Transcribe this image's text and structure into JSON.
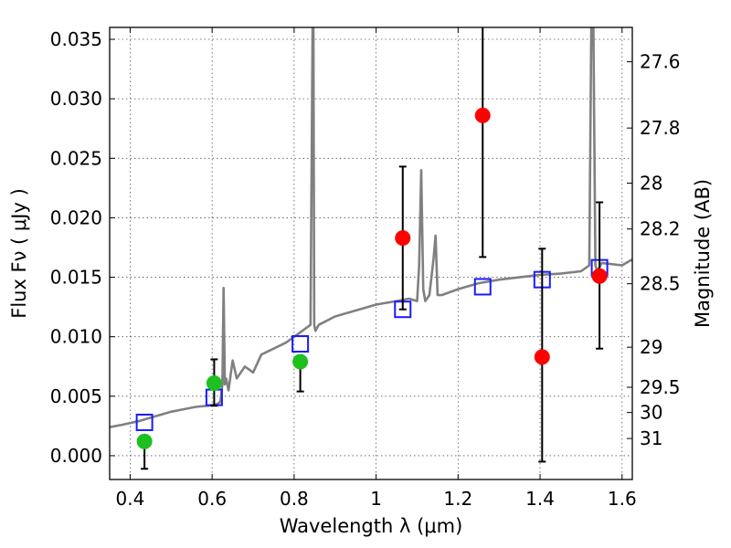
{
  "chart_data": {
    "type": "scatter",
    "title": "",
    "xlabel": "Wavelength  λ (μm)",
    "ylabel": "Flux  Fν  ( μJy )",
    "y2label": "Magnitude (AB)",
    "xlim": [
      0.35,
      1.625
    ],
    "ylim": [
      -0.002,
      0.036
    ],
    "grid": true,
    "legend": "none",
    "x_ticks": [
      {
        "v": 0.4,
        "label": "0.4"
      },
      {
        "v": 0.6,
        "label": "0.6"
      },
      {
        "v": 0.8,
        "label": "0.8"
      },
      {
        "v": 1.0,
        "label": "1"
      },
      {
        "v": 1.2,
        "label": "1.2"
      },
      {
        "v": 1.4,
        "label": "1.4"
      },
      {
        "v": 1.6,
        "label": "1.6"
      }
    ],
    "y_ticks": [
      {
        "v": 0.0,
        "label": "0.000"
      },
      {
        "v": 0.005,
        "label": "0.005"
      },
      {
        "v": 0.01,
        "label": "0.010"
      },
      {
        "v": 0.015,
        "label": "0.015"
      },
      {
        "v": 0.02,
        "label": "0.020"
      },
      {
        "v": 0.025,
        "label": "0.025"
      },
      {
        "v": 0.03,
        "label": "0.030"
      },
      {
        "v": 0.035,
        "label": "0.035"
      }
    ],
    "mag_ticks": [
      {
        "mag": 27.6,
        "label": "27.6"
      },
      {
        "mag": 27.8,
        "label": "27.8"
      },
      {
        "mag": 28.0,
        "label": "28"
      },
      {
        "mag": 28.2,
        "label": "28.2"
      },
      {
        "mag": 28.5,
        "label": "28.5"
      },
      {
        "mag": 29.0,
        "label": "29"
      },
      {
        "mag": 29.5,
        "label": "29.5"
      },
      {
        "mag": 30.0,
        "label": "30"
      },
      {
        "mag": 31.0,
        "label": "31"
      }
    ],
    "series": [
      {
        "kind": "line",
        "color": "#808080",
        "x": [
          0.35,
          0.38,
          0.42,
          0.45,
          0.48,
          0.5,
          0.53,
          0.56,
          0.59,
          0.61,
          0.62,
          0.625,
          0.628,
          0.631,
          0.634,
          0.64,
          0.65,
          0.66,
          0.68,
          0.7,
          0.72,
          0.75,
          0.78,
          0.8,
          0.82,
          0.84,
          0.845,
          0.847,
          0.849,
          0.852,
          0.86,
          0.9,
          0.95,
          1.0,
          1.05,
          1.08,
          1.1,
          1.105,
          1.11,
          1.115,
          1.12,
          1.13,
          1.14,
          1.145,
          1.15,
          1.16,
          1.2,
          1.25,
          1.3,
          1.35,
          1.4,
          1.45,
          1.5,
          1.52,
          1.525,
          1.53,
          1.535,
          1.54,
          1.55,
          1.6,
          1.625
        ],
        "y": [
          0.0024,
          0.0026,
          0.0029,
          0.0032,
          0.0035,
          0.0037,
          0.0039,
          0.0041,
          0.0042,
          0.0043,
          0.0045,
          0.006,
          0.0141,
          0.006,
          0.0065,
          0.0055,
          0.008,
          0.0065,
          0.0075,
          0.007,
          0.0085,
          0.009,
          0.0095,
          0.01,
          0.0105,
          0.011,
          0.036,
          0.036,
          0.011,
          0.0105,
          0.011,
          0.0117,
          0.0122,
          0.0127,
          0.013,
          0.0132,
          0.013,
          0.016,
          0.024,
          0.014,
          0.013,
          0.0135,
          0.0165,
          0.0185,
          0.0135,
          0.0135,
          0.014,
          0.0145,
          0.0148,
          0.015,
          0.0152,
          0.0153,
          0.0155,
          0.016,
          0.036,
          0.036,
          0.016,
          0.0155,
          0.0162,
          0.016,
          0.0165
        ]
      },
      {
        "kind": "squares",
        "color": "#1a1aff",
        "x": [
          0.435,
          0.605,
          0.815,
          1.065,
          1.26,
          1.405,
          1.545
        ],
        "y": [
          0.0028,
          0.0049,
          0.0094,
          0.0123,
          0.0142,
          0.0148,
          0.0158
        ]
      },
      {
        "kind": "points",
        "color": "#1fbf1f",
        "x": [
          0.435,
          0.605,
          0.815
        ],
        "y": [
          0.0012,
          0.0061,
          0.0079
        ],
        "err_low": [
          0.0023,
          0.0019,
          0.0025
        ],
        "err_high": [
          0.0,
          0.002,
          0.0
        ]
      },
      {
        "kind": "points",
        "color": "#ff0000",
        "x": [
          1.065,
          1.26,
          1.405,
          1.545
        ],
        "y": [
          0.0183,
          0.0286,
          0.0083,
          0.0151
        ],
        "err_low": [
          0.006,
          0.0119,
          0.0088,
          0.0061
        ],
        "err_high": [
          0.006,
          0.0074,
          0.0091,
          0.0062
        ]
      }
    ]
  }
}
